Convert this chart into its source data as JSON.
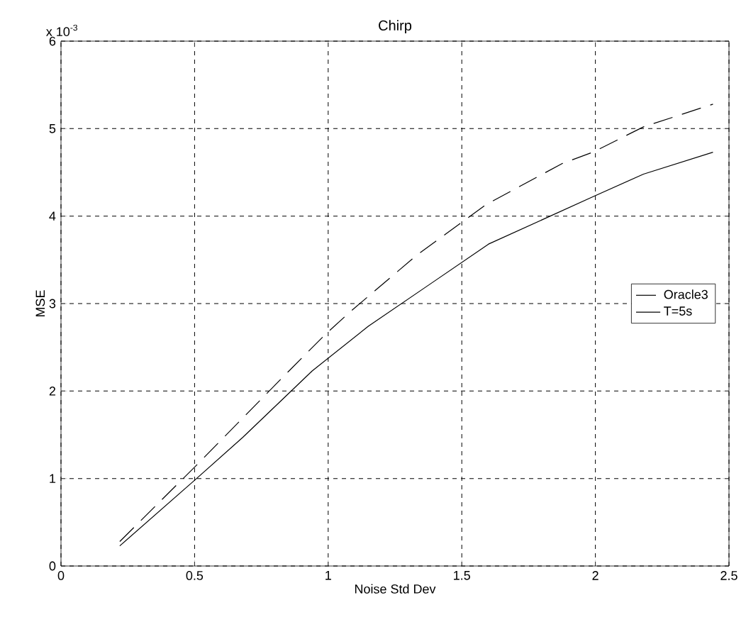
{
  "chart_data": {
    "type": "line",
    "title": "Chirp",
    "xlabel": "Noise Std Dev",
    "ylabel": "MSE",
    "annotations": [
      "x 10$^{-3}$"
    ],
    "series": [
      {
        "name": "Oracle3",
        "color": "#000000",
        "line_style": "dashed",
        "x": [
          0.22,
          0.5,
          0.85,
          0.99,
          1.08,
          1.33,
          1.59,
          1.875,
          1.99,
          2.18,
          2.44
        ],
        "values": [
          0.28,
          1.13,
          2.22,
          2.65,
          2.9,
          3.55,
          4.13,
          4.6,
          4.73,
          5.02,
          5.28
        ]
      },
      {
        "name": "T=5s",
        "color": "#000000",
        "line_style": "solid",
        "x": [
          0.22,
          0.5,
          0.68,
          0.94,
          1.15,
          1.38,
          1.6,
          1.99,
          2.18,
          2.44
        ],
        "values": [
          0.23,
          0.98,
          1.47,
          2.23,
          2.74,
          3.22,
          3.68,
          4.22,
          4.48,
          4.73
        ]
      }
    ],
    "xlim": [
      0,
      2.5
    ],
    "ylim": [
      0,
      6
    ],
    "xticks": [
      0,
      0.5,
      1,
      1.5,
      2,
      2.5
    ],
    "yticks": [
      0,
      1,
      2,
      3,
      4,
      5,
      6
    ],
    "grid": true,
    "legend": "right",
    "marker": "none"
  }
}
